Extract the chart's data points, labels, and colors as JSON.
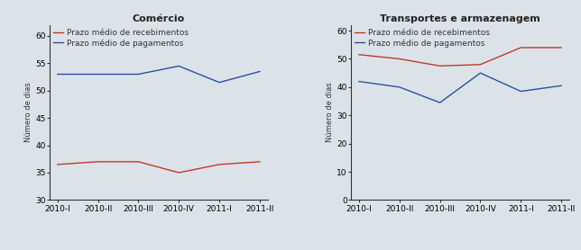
{
  "background_color": "#dce3e8",
  "x_labels": [
    "2010-I",
    "2010-II",
    "2010-III",
    "2010-IV",
    "2011-I",
    "2011-II"
  ],
  "charts": [
    {
      "title": "Comércio",
      "recebimentos": [
        36.5,
        37.0,
        37.0,
        35.0,
        36.5,
        37.0
      ],
      "pagamentos": [
        53.0,
        53.0,
        53.0,
        54.5,
        51.5,
        53.5
      ],
      "ylim": [
        30,
        62
      ],
      "yticks": [
        30,
        35,
        40,
        45,
        50,
        55,
        60
      ]
    },
    {
      "title": "Transportes e armazenagem",
      "recebimentos": [
        51.5,
        50.0,
        47.5,
        48.0,
        54.0,
        54.0
      ],
      "pagamentos": [
        42.0,
        40.0,
        34.5,
        45.0,
        38.5,
        40.5
      ],
      "ylim": [
        0,
        62
      ],
      "yticks": [
        0,
        10,
        20,
        30,
        40,
        50,
        60
      ]
    }
  ],
  "color_recebimentos": "#c0392b",
  "color_pagamentos": "#2c4fa0",
  "legend_label_recebimentos": "Prazo médio de recebimentos",
  "legend_label_pagamentos": "Prazo médio de pagamentos",
  "ylabel": "Número de dias",
  "title_fontsize": 8,
  "label_fontsize": 6,
  "legend_fontsize": 6.5,
  "tick_fontsize": 6.5
}
